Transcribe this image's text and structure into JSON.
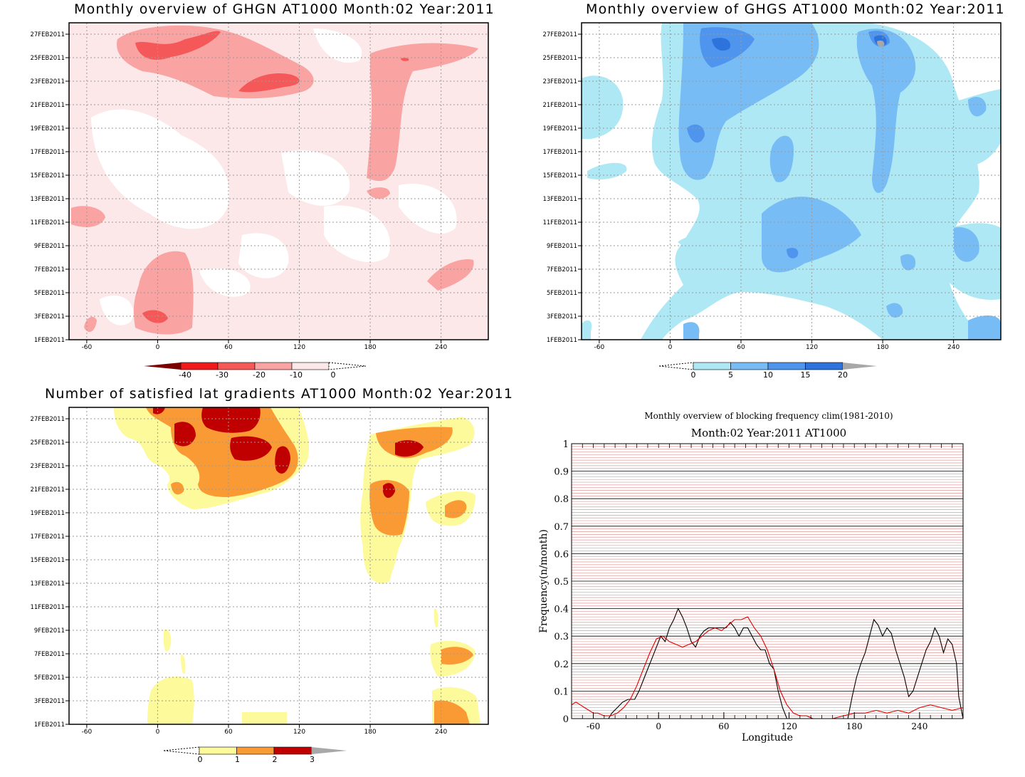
{
  "colors": {
    "pink": "#fce8e8",
    "light_red": "#f9a3a3",
    "red_mid": "#f55858",
    "red": "#ef1a1a",
    "dark_red": "#7a0000",
    "sky": "#ade8f4",
    "blue1": "#78bcf5",
    "blue2": "#4f95ee",
    "blue3": "#2c73dc",
    "gray": "#a8a8a8",
    "yellow": "#fdfa9c",
    "orange": "#fa9a34",
    "crimson": "#c00000",
    "grid": "#9a9a9a",
    "grid_red": "#e09a9a"
  },
  "chart_data": [
    {
      "type": "heatmap",
      "title": "Monthly overview of GHGN AT1000 Month:02 Year:2011",
      "x_ticks": [
        "-60",
        "0",
        "60",
        "120",
        "180",
        "240"
      ],
      "y_ticks": [
        "1FEB2011",
        "3FEB2011",
        "5FEB2011",
        "7FEB2011",
        "9FEB2011",
        "11FEB2011",
        "13FEB2011",
        "15FEB2011",
        "17FEB2011",
        "19FEB2011",
        "21FEB2011",
        "23FEB2011",
        "25FEB2011",
        "27FEB2011"
      ],
      "xlim": [
        -75,
        280
      ],
      "colorbar": [
        "-40",
        "-30",
        "-20",
        "-10",
        "0"
      ]
    },
    {
      "type": "heatmap",
      "title": "Monthly overview of GHGS AT1000 Month:02 Year:2011",
      "x_ticks": [
        "-60",
        "0",
        "60",
        "120",
        "180",
        "240"
      ],
      "y_ticks": [
        "1FEB2011",
        "3FEB2011",
        "5FEB2011",
        "7FEB2011",
        "9FEB2011",
        "11FEB2011",
        "13FEB2011",
        "15FEB2011",
        "17FEB2011",
        "19FEB2011",
        "21FEB2011",
        "23FEB2011",
        "25FEB2011",
        "27FEB2011"
      ],
      "xlim": [
        -75,
        280
      ],
      "colorbar": [
        "0",
        "5",
        "10",
        "15",
        "20"
      ]
    },
    {
      "type": "heatmap",
      "title": "Number of satisfied lat gradients AT1000 Month:02 Year:2011",
      "x_ticks": [
        "-60",
        "0",
        "60",
        "120",
        "180",
        "240"
      ],
      "y_ticks": [
        "1FEB2011",
        "3FEB2011",
        "5FEB2011",
        "7FEB2011",
        "9FEB2011",
        "11FEB2011",
        "13FEB2011",
        "15FEB2011",
        "17FEB2011",
        "19FEB2011",
        "21FEB2011",
        "23FEB2011",
        "25FEB2011",
        "27FEB2011"
      ],
      "xlim": [
        -75,
        280
      ],
      "colorbar": [
        "0",
        "1",
        "2",
        "3"
      ]
    },
    {
      "type": "line",
      "title": "Monthly overview of blocking frequency clim(1981-2010)",
      "subtitle": "Month:02 Year:2011  AT1000",
      "xlabel": "Longitude",
      "ylabel": "Frequency(n/month)",
      "xlim": [
        -80,
        280
      ],
      "ylim": [
        0,
        1
      ],
      "x_ticks": [
        "-60",
        "0",
        "60",
        "120",
        "180",
        "240"
      ],
      "y_ticks": [
        "0",
        "0.1",
        "0.2",
        "0.3",
        "0.4",
        "0.5",
        "0.6",
        "0.7",
        "0.8",
        "0.9",
        "1"
      ],
      "grid": true,
      "series": [
        {
          "color": "#000000",
          "x": [
            -80,
            -46,
            -43,
            -38,
            -33,
            -28,
            -25,
            -22,
            -18,
            -14,
            -10,
            -6,
            -2,
            2,
            6,
            10,
            14,
            18,
            22,
            26,
            30,
            34,
            38,
            42,
            46,
            50,
            54,
            58,
            62,
            66,
            70,
            74,
            78,
            82,
            86,
            90,
            94,
            98,
            102,
            106,
            110,
            114,
            118,
            122,
            126,
            130,
            134,
            138,
            142,
            146,
            150,
            154,
            158,
            162,
            166,
            170,
            174,
            178,
            182,
            186,
            190,
            194,
            198,
            202,
            206,
            210,
            214,
            218,
            222,
            226,
            230,
            234,
            238,
            242,
            246,
            250,
            254,
            258,
            262,
            266,
            270,
            274,
            276,
            280
          ],
          "y": [
            0,
            0,
            0.02,
            0.04,
            0.06,
            0.07,
            0.07,
            0.07,
            0.1,
            0.14,
            0.18,
            0.22,
            0.26,
            0.3,
            0.28,
            0.33,
            0.36,
            0.4,
            0.37,
            0.33,
            0.28,
            0.26,
            0.3,
            0.32,
            0.33,
            0.33,
            0.33,
            0.33,
            0.33,
            0.35,
            0.33,
            0.3,
            0.33,
            0.33,
            0.3,
            0.27,
            0.25,
            0.25,
            0.2,
            0.18,
            0.1,
            0.04,
            0,
            0,
            0,
            0,
            0,
            0,
            0,
            0,
            0,
            0,
            0,
            0,
            0,
            0,
            0,
            0.08,
            0.15,
            0.2,
            0.24,
            0.3,
            0.36,
            0.34,
            0.3,
            0.33,
            0.31,
            0.25,
            0.2,
            0.15,
            0.08,
            0.1,
            0.15,
            0.2,
            0.25,
            0.28,
            0.33,
            0.3,
            0.24,
            0.29,
            0.27,
            0.2,
            0.08,
            0
          ]
        },
        {
          "color": "#e00000",
          "x": [
            -80,
            -76,
            -72,
            -68,
            -64,
            -60,
            -56,
            -50,
            -44,
            -38,
            -32,
            -26,
            -20,
            -14,
            -8,
            -2,
            4,
            10,
            16,
            22,
            28,
            34,
            40,
            46,
            52,
            58,
            64,
            70,
            76,
            82,
            88,
            94,
            100,
            106,
            112,
            118,
            124,
            130,
            136,
            142,
            150,
            160,
            170,
            180,
            190,
            200,
            210,
            220,
            230,
            240,
            250,
            260,
            270,
            280
          ],
          "y": [
            0.05,
            0.06,
            0.05,
            0.04,
            0.03,
            0.02,
            0.02,
            0.01,
            0.01,
            0.02,
            0.04,
            0.07,
            0.12,
            0.18,
            0.24,
            0.29,
            0.3,
            0.28,
            0.27,
            0.26,
            0.27,
            0.28,
            0.3,
            0.32,
            0.33,
            0.32,
            0.34,
            0.36,
            0.36,
            0.37,
            0.33,
            0.3,
            0.25,
            0.18,
            0.1,
            0.05,
            0.02,
            0.01,
            0.01,
            0,
            0,
            0,
            0.01,
            0.02,
            0.02,
            0.03,
            0.02,
            0.03,
            0.02,
            0.04,
            0.05,
            0.04,
            0.03,
            0.04
          ]
        }
      ]
    }
  ]
}
